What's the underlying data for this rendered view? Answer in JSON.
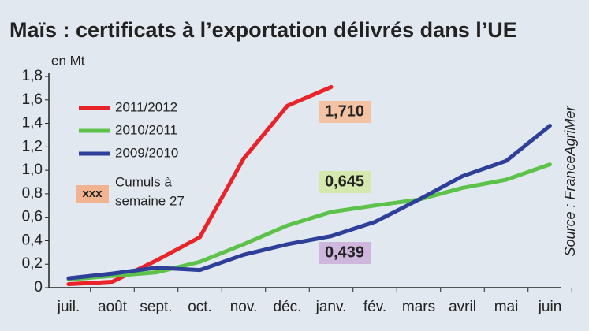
{
  "chart_data": {
    "type": "line",
    "title": "Maïs : certificats à l’exportation délivrés dans l’UE",
    "y_label": "en Mt",
    "source": "Source : FranceAgriMer",
    "categories": [
      "juil.",
      "août",
      "sept.",
      "oct.",
      "nov.",
      "déc.",
      "janv.",
      "fév.",
      "mars",
      "avril",
      "mai",
      "juin"
    ],
    "series": [
      {
        "name": "2011/2012",
        "color": "#e8232a",
        "values": [
          0.03,
          0.05,
          0.23,
          0.43,
          1.1,
          1.55,
          1.71,
          null,
          null,
          null,
          null,
          null
        ]
      },
      {
        "name": "2010/2011",
        "color": "#5cc24a",
        "values": [
          0.07,
          0.1,
          0.13,
          0.22,
          0.37,
          0.53,
          0.645,
          0.7,
          0.75,
          0.85,
          0.92,
          1.05
        ]
      },
      {
        "name": "2009/2010",
        "color": "#2e3f99",
        "values": [
          0.08,
          0.12,
          0.17,
          0.15,
          0.28,
          0.37,
          0.439,
          0.56,
          0.75,
          0.95,
          1.08,
          1.38
        ]
      }
    ],
    "annotations": [
      {
        "text": "1,710",
        "color": "#f4c3a3"
      },
      {
        "text": "0,645",
        "color": "#d5e8ae"
      },
      {
        "text": "0,439",
        "color": "#cfb6dd"
      }
    ],
    "note": {
      "marker": "xxx",
      "color": "#f2b391",
      "lines": [
        "Cumuls à",
        "semaine 27"
      ]
    },
    "ylim": [
      0,
      1.8
    ],
    "yticks": [
      0,
      {
        "value": 0.2,
        "label": "0,2"
      },
      {
        "value": 0.4,
        "label": "0,4"
      },
      {
        "value": 0.6,
        "label": "0,6"
      },
      {
        "value": 0.8,
        "label": "0,8"
      },
      {
        "value": 1.0,
        "label": "1,0"
      },
      {
        "value": 1.2,
        "label": "1,2"
      },
      {
        "value": 1.4,
        "label": "1,4"
      },
      {
        "value": 1.6,
        "label": "1,6"
      },
      {
        "value": 1.8,
        "label": "1,8"
      }
    ]
  }
}
